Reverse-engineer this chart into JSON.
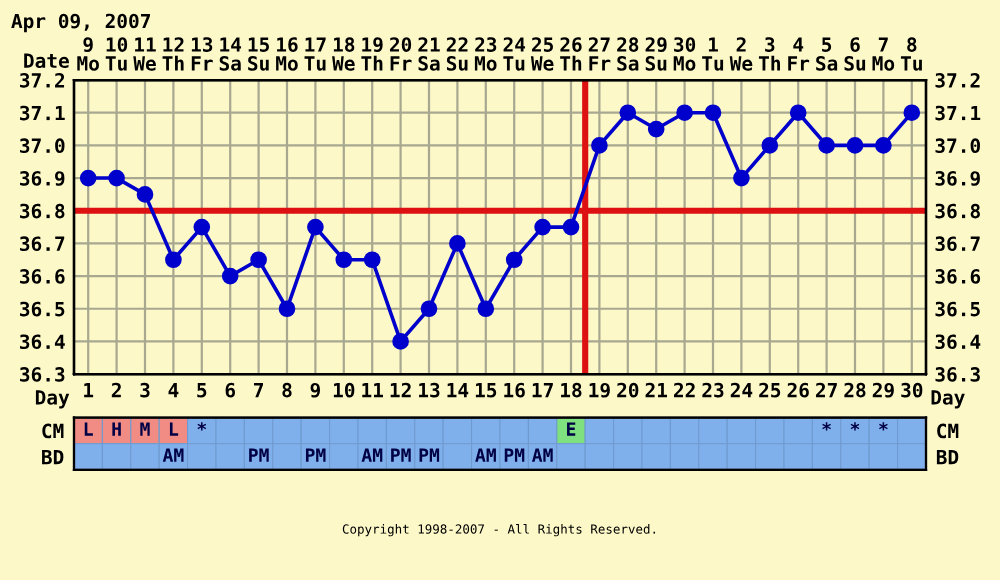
{
  "chart_data": [
    {
      "type": "line",
      "title": "Apr 09, 2007",
      "x2label": "Date",
      "xlabel": "Day",
      "x": [
        1,
        2,
        3,
        4,
        5,
        6,
        7,
        8,
        9,
        10,
        11,
        12,
        13,
        14,
        15,
        16,
        17,
        18,
        19,
        20,
        21,
        22,
        23,
        24,
        25,
        26,
        27,
        28,
        29,
        30
      ],
      "series": [
        {
          "color": "#0000cc",
          "values": [
            36.9,
            36.9,
            36.85,
            36.65,
            36.75,
            36.6,
            36.65,
            36.5,
            36.75,
            36.65,
            36.65,
            36.4,
            36.5,
            36.7,
            36.5,
            36.65,
            36.75,
            36.75,
            37.0,
            37.1,
            37.05,
            37.1,
            37.1,
            36.9,
            37.0,
            37.1,
            37.0,
            37.0,
            37.0,
            37.1
          ]
        }
      ],
      "xlim": [
        0.5,
        30.5
      ],
      "xticks": [
        1,
        2,
        3,
        4,
        5,
        6,
        7,
        8,
        9,
        10,
        11,
        12,
        13,
        14,
        15,
        16,
        17,
        18,
        19,
        20,
        21,
        22,
        23,
        24,
        25,
        26,
        27,
        28,
        29,
        30
      ],
      "x2lim": [
        "2007-04-08T12:00",
        "2007-05-08T12:00"
      ],
      "x2ticks": [
        {
          "value": "2007-04-09",
          "label": "9\nMo"
        },
        {
          "value": "2007-04-10",
          "label": "10\nTu"
        },
        {
          "value": "2007-04-11",
          "label": "11\nWe"
        },
        {
          "value": "2007-04-12",
          "label": "12\nTh"
        },
        {
          "value": "2007-04-13",
          "label": "13\nFr"
        },
        {
          "value": "2007-04-14",
          "label": "14\nSa"
        },
        {
          "value": "2007-04-15",
          "label": "15\nSu"
        },
        {
          "value": "2007-04-16",
          "label": "16\nMo"
        },
        {
          "value": "2007-04-17",
          "label": "17\nTu"
        },
        {
          "value": "2007-04-18",
          "label": "18\nWe"
        },
        {
          "value": "2007-04-19",
          "label": "19\nTh"
        },
        {
          "value": "2007-04-20",
          "label": "20\nFr"
        },
        {
          "value": "2007-04-21",
          "label": "21\nSa"
        },
        {
          "value": "2007-04-22",
          "label": "22\nSu"
        },
        {
          "value": "2007-04-23",
          "label": "23\nMo"
        },
        {
          "value": "2007-04-24",
          "label": "24\nTu"
        },
        {
          "value": "2007-04-25",
          "label": "25\nWe"
        },
        {
          "value": "2007-04-26",
          "label": "26\nTh"
        },
        {
          "value": "2007-04-27",
          "label": "27\nFr"
        },
        {
          "value": "2007-04-28",
          "label": "28\nSa"
        },
        {
          "value": "2007-04-29",
          "label": "29\nSu"
        },
        {
          "value": "2007-04-30",
          "label": "30\nMo"
        },
        {
          "value": "2007-05-01",
          "label": "1\nTu"
        },
        {
          "value": "2007-05-02",
          "label": "2\nWe"
        },
        {
          "value": "2007-05-03",
          "label": "3\nTh"
        },
        {
          "value": "2007-05-04",
          "label": "4\nFr"
        },
        {
          "value": "2007-05-05",
          "label": "5\nSa"
        },
        {
          "value": "2007-05-06",
          "label": "6\nSu"
        },
        {
          "value": "2007-05-07",
          "label": "7\nMo"
        },
        {
          "value": "2007-05-08",
          "label": "8\nTu"
        }
      ],
      "ylim": [
        36.3,
        37.2
      ],
      "yticks": [
        {
          "value": 36.3,
          "label": "36.3"
        },
        {
          "value": 36.4,
          "label": "36.4"
        },
        {
          "value": 36.5,
          "label": "36.5"
        },
        {
          "value": 36.6,
          "label": "36.6"
        },
        {
          "value": 36.7,
          "label": "36.7"
        },
        {
          "value": 36.8,
          "label": "36.8"
        },
        {
          "value": 36.9,
          "label": "36.9"
        },
        {
          "value": 37.0,
          "label": "37.0"
        },
        {
          "value": 37.1,
          "label": "37.1"
        },
        {
          "value": 37.2,
          "label": "37.2"
        }
      ],
      "y2lim": [
        36.3,
        37.2
      ],
      "y2ticks": [
        {
          "value": 36.3,
          "label": "36.3"
        },
        {
          "value": 36.4,
          "label": "36.4"
        },
        {
          "value": 36.5,
          "label": "36.5"
        },
        {
          "value": 36.6,
          "label": "36.6"
        },
        {
          "value": 36.7,
          "label": "36.7"
        },
        {
          "value": 36.8,
          "label": "36.8"
        },
        {
          "value": 36.9,
          "label": "36.9"
        },
        {
          "value": 37.0,
          "label": "37.0"
        },
        {
          "value": 37.1,
          "label": "37.1"
        },
        {
          "value": 37.2,
          "label": "37.2"
        }
      ],
      "ref_lines": [
        {
          "axis": "y",
          "value": 36.8,
          "color": "#dd1111"
        },
        {
          "axis": "x",
          "value": 18.5,
          "color": "#dd1111"
        }
      ],
      "grid": true,
      "marker": "circle",
      "line_style": "solid",
      "annotations": [
        "Copyright 1998-2007 - All Rights Reserved."
      ]
    },
    {
      "type": "heatmap",
      "categories": [
        null,
        null,
        null,
        null,
        null,
        null,
        null,
        null,
        null,
        null,
        null,
        null,
        null,
        null,
        null,
        null,
        null,
        null,
        null,
        null,
        null,
        null,
        null,
        null,
        null,
        null,
        null,
        null,
        null,
        null
      ],
      "y_categories": [
        "CM",
        "BD"
      ],
      "y2_categories": [
        "CM",
        "BD"
      ],
      "cells": [
        [
          null,
          null,
          null,
          null,
          null,
          null,
          null,
          null,
          null,
          null,
          null,
          null,
          null,
          null,
          null,
          null,
          null,
          null,
          null,
          null,
          null,
          null,
          null,
          null,
          null,
          null,
          null,
          null,
          null,
          null
        ],
        [
          null,
          null,
          null,
          null,
          null,
          null,
          null,
          null,
          null,
          null,
          null,
          null,
          null,
          null,
          null,
          null,
          null,
          null,
          null,
          null,
          null,
          null,
          null,
          null,
          null,
          null,
          null,
          null,
          null,
          null
        ]
      ],
      "cell_labels": [
        [
          "L",
          "H",
          "M",
          "L",
          "*",
          null,
          null,
          null,
          null,
          null,
          null,
          null,
          null,
          null,
          null,
          null,
          null,
          "E",
          null,
          null,
          null,
          null,
          null,
          null,
          null,
          null,
          "*",
          "*",
          "*",
          null
        ],
        [
          null,
          null,
          null,
          "AM",
          null,
          null,
          "PM",
          null,
          "PM",
          null,
          "AM",
          "PM",
          "PM",
          null,
          "AM",
          "PM",
          "AM",
          null,
          null,
          null,
          null,
          null,
          null,
          null,
          null,
          null,
          null,
          null,
          null,
          null
        ]
      ],
      "colors": [
        [
          "#f08c84",
          "#f08c84",
          "#f08c84",
          "#f08c84",
          "#80b0ec",
          "#80b0ec",
          "#80b0ec",
          "#80b0ec",
          "#80b0ec",
          "#80b0ec",
          "#80b0ec",
          "#80b0ec",
          "#80b0ec",
          "#80b0ec",
          "#80b0ec",
          "#80b0ec",
          "#80b0ec",
          "#7ee07e",
          "#80b0ec",
          "#80b0ec",
          "#80b0ec",
          "#80b0ec",
          "#80b0ec",
          "#80b0ec",
          "#80b0ec",
          "#80b0ec",
          "#80b0ec",
          "#80b0ec",
          "#80b0ec",
          "#80b0ec"
        ],
        [
          "#80b0ec",
          "#80b0ec",
          "#80b0ec",
          "#80b0ec",
          "#80b0ec",
          "#80b0ec",
          "#80b0ec",
          "#80b0ec",
          "#80b0ec",
          "#80b0ec",
          "#80b0ec",
          "#80b0ec",
          "#80b0ec",
          "#80b0ec",
          "#80b0ec",
          "#80b0ec",
          "#80b0ec",
          "#80b0ec",
          "#80b0ec",
          "#80b0ec",
          "#80b0ec",
          "#80b0ec",
          "#80b0ec",
          "#80b0ec",
          "#80b0ec",
          "#80b0ec",
          "#80b0ec",
          "#80b0ec",
          "#80b0ec",
          "#80b0ec"
        ]
      ],
      "tick_labels": "y"
    }
  ]
}
